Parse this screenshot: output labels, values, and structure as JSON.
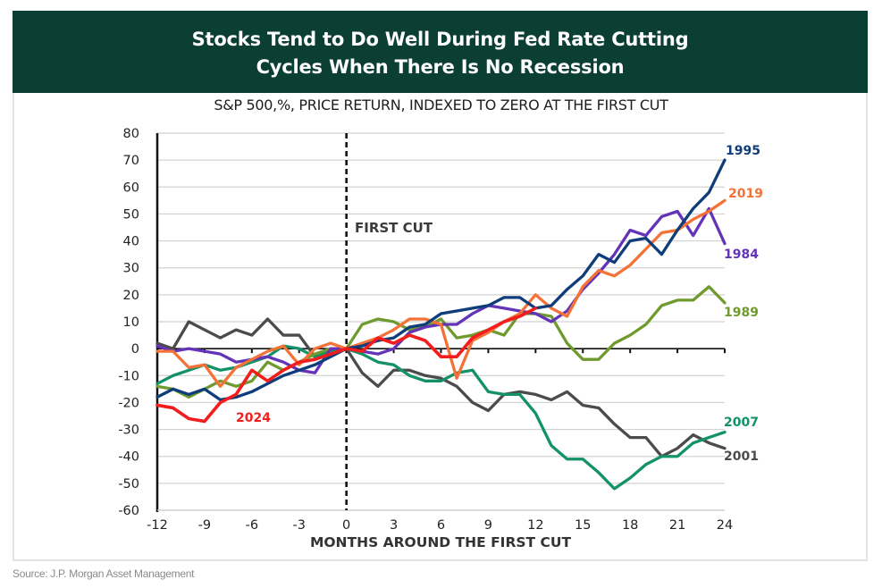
{
  "banner": {
    "line1": "Stocks Tend to Do Well During Fed Rate Cutting",
    "line2": "Cycles When There Is No Recession",
    "background": "#0c3f34"
  },
  "subtitle": "S&P 500,%, PRICE RETURN, INDEXED TO ZERO AT THE FIRST CUT",
  "source": "Source: J.P. Morgan Asset Management",
  "chart_data": {
    "type": "line",
    "title": "Stocks Tend to Do Well During Fed Rate Cutting Cycles When There Is No Recession",
    "subtitle": "S&P 500,%, PRICE RETURN, INDEXED TO ZERO AT THE FIRST CUT",
    "xlabel": "MONTHS AROUND THE FIRST CUT",
    "ylabel": "",
    "xlim": [
      -12,
      24
    ],
    "ylim": [
      -60,
      80
    ],
    "x_ticks": [
      -12,
      -9,
      -6,
      -3,
      0,
      3,
      6,
      9,
      12,
      15,
      18,
      21,
      24
    ],
    "y_ticks": [
      80,
      70,
      60,
      50,
      40,
      30,
      20,
      10,
      0,
      -10,
      -20,
      -30,
      -40,
      -50,
      -60
    ],
    "grid": true,
    "annotations": [
      {
        "text": "FIRST CUT",
        "x": 0,
        "style": "dashed vertical line"
      }
    ],
    "x": [
      -12,
      -11,
      -10,
      -9,
      -8,
      -7,
      -6,
      -5,
      -4,
      -3,
      -2,
      -1,
      0,
      1,
      2,
      3,
      4,
      5,
      6,
      7,
      8,
      9,
      10,
      11,
      12,
      13,
      14,
      15,
      16,
      17,
      18,
      19,
      20,
      21,
      22,
      23,
      24
    ],
    "series": [
      {
        "name": "1995",
        "color": "#0e3d7a",
        "values": [
          -18,
          -15,
          -17,
          -15,
          -19,
          -18,
          -16,
          -13,
          -10,
          -8,
          -6,
          -3,
          0,
          1,
          3,
          4,
          8,
          9,
          13,
          14,
          15,
          16,
          19,
          19,
          15,
          16,
          22,
          27,
          35,
          32,
          40,
          41,
          35,
          44,
          52,
          58,
          70
        ]
      },
      {
        "name": "2019",
        "color": "#f47238",
        "values": [
          -1,
          -1,
          -7,
          -6,
          -14,
          -7,
          -4,
          -1,
          1,
          -6,
          0,
          2,
          0,
          2,
          4,
          7,
          11,
          11,
          9,
          -11,
          3,
          6,
          10,
          13,
          20,
          15,
          12,
          23,
          29,
          27,
          31,
          37,
          43,
          44,
          48,
          51,
          55
        ]
      },
      {
        "name": "1984",
        "color": "#6333b8",
        "values": [
          1,
          -1,
          0,
          -1,
          -2,
          -5,
          -4,
          -3,
          -5,
          -8,
          -9,
          0,
          0,
          -1,
          -2,
          0,
          6,
          8,
          9,
          9,
          13,
          16,
          15,
          14,
          13,
          10,
          14,
          22,
          28,
          35,
          44,
          42,
          49,
          51,
          42,
          52,
          39
        ]
      },
      {
        "name": "1989",
        "color": "#6f9a2e",
        "values": [
          -14,
          -15,
          -18,
          -15,
          -12,
          -14,
          -12,
          -5,
          -8,
          -5,
          -2,
          0,
          0,
          9,
          11,
          10,
          7,
          8,
          11,
          4,
          5,
          7,
          5,
          13,
          13,
          12,
          2,
          -4,
          -4,
          2,
          5,
          9,
          16,
          18,
          18,
          23,
          17
        ]
      },
      {
        "name": "2007",
        "color": "#139268",
        "values": [
          -13,
          -10,
          -8,
          -6,
          -8,
          -7,
          -5,
          -3,
          1,
          0,
          -3,
          -1,
          0,
          -2,
          -5,
          -6,
          -10,
          -12,
          -12,
          -9,
          -8,
          -16,
          -17,
          -17,
          -24,
          -36,
          -41,
          -41,
          -46,
          -52,
          -48,
          -43,
          -40,
          -40,
          -35,
          -33,
          -31
        ]
      },
      {
        "name": "2001",
        "color": "#4b4b4b",
        "values": [
          2,
          0,
          10,
          7,
          4,
          7,
          5,
          11,
          5,
          5,
          -3,
          0,
          0,
          -9,
          -14,
          -8,
          -8,
          -10,
          -11,
          -14,
          -20,
          -23,
          -17,
          -16,
          -17,
          -19,
          -16,
          -21,
          -22,
          -28,
          -33,
          -33,
          -40,
          -37,
          -32,
          -35,
          -37
        ]
      },
      {
        "name": "2024",
        "color": "#f21d1d",
        "values": [
          -21,
          -22,
          -26,
          -27,
          -20,
          -17,
          -8,
          -12,
          -8,
          -5,
          -4,
          -2,
          0,
          -1,
          4,
          2,
          5,
          3,
          -3,
          -3,
          4,
          7,
          10,
          12,
          15
        ]
      }
    ],
    "series_labels": [
      {
        "name": "1995",
        "position": "right-end"
      },
      {
        "name": "2019",
        "position": "right-end"
      },
      {
        "name": "1984",
        "position": "right-end"
      },
      {
        "name": "1989",
        "position": "right-end"
      },
      {
        "name": "2007",
        "position": "right-end"
      },
      {
        "name": "2001",
        "position": "right-end"
      },
      {
        "name": "2024",
        "position": "inside-left"
      }
    ]
  }
}
